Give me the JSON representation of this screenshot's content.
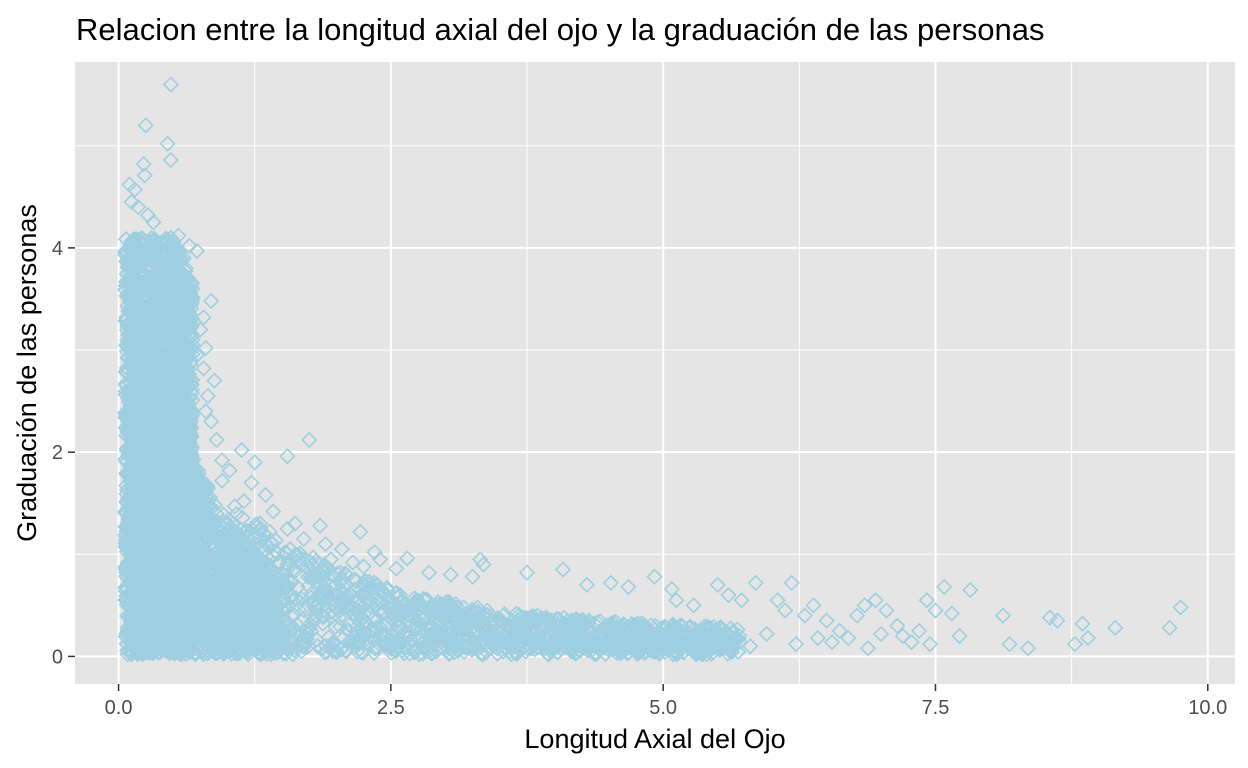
{
  "chart_data": {
    "type": "scatter",
    "title": "Relacion entre la longitud axial del ojo y la graduación de las personas",
    "xlabel": "Longitud Axial del Ojo",
    "ylabel": "Graduación de las personas",
    "xlim": [
      -0.4,
      10.25
    ],
    "ylim": [
      -0.27,
      5.82
    ],
    "x_ticks": [
      0,
      2.5,
      5,
      7.5,
      10
    ],
    "x_tick_labels": [
      "0.0",
      "2.5",
      "5.0",
      "7.5",
      "10.0"
    ],
    "y_ticks": [
      0,
      2,
      4
    ],
    "y_tick_labels": [
      "0",
      "2",
      "4"
    ],
    "grid": true,
    "legend": "none",
    "marker": "open-diamond",
    "colors": {
      "marker": "#9ecfe0",
      "panel": "#e5e5e5",
      "grid": "#ffffff",
      "tick": "#333333"
    },
    "points": [
      [
        0.48,
        5.6
      ],
      [
        0.25,
        5.2
      ],
      [
        0.45,
        5.02
      ],
      [
        0.48,
        4.86
      ],
      [
        0.23,
        4.82
      ],
      [
        0.24,
        4.71
      ],
      [
        0.1,
        4.62
      ],
      [
        0.15,
        4.57
      ],
      [
        0.12,
        4.45
      ],
      [
        0.18,
        4.4
      ],
      [
        0.27,
        4.32
      ],
      [
        0.32,
        4.25
      ],
      [
        0.55,
        4.12
      ],
      [
        0.65,
        4.02
      ],
      [
        0.72,
        3.97
      ],
      [
        0.6,
        3.9
      ],
      [
        0.58,
        3.72
      ],
      [
        0.65,
        3.6
      ],
      [
        0.85,
        3.48
      ],
      [
        0.78,
        3.32
      ],
      [
        0.75,
        3.2
      ],
      [
        0.68,
        3.1
      ],
      [
        0.8,
        3.02
      ],
      [
        0.72,
        2.95
      ],
      [
        0.78,
        2.82
      ],
      [
        0.88,
        2.7
      ],
      [
        0.82,
        2.55
      ],
      [
        0.8,
        2.4
      ],
      [
        0.85,
        2.3
      ],
      [
        0.9,
        2.12
      ],
      [
        1.75,
        2.12
      ],
      [
        1.13,
        2.02
      ],
      [
        1.55,
        1.96
      ],
      [
        0.95,
        1.92
      ],
      [
        1.25,
        1.9
      ],
      [
        1.02,
        1.82
      ],
      [
        0.95,
        1.72
      ],
      [
        1.22,
        1.7
      ],
      [
        1.35,
        1.58
      ],
      [
        1.15,
        1.52
      ],
      [
        1.42,
        1.42
      ],
      [
        1.3,
        1.3
      ],
      [
        1.62,
        1.3
      ],
      [
        1.85,
        1.28
      ],
      [
        1.55,
        1.25
      ],
      [
        2.22,
        1.22
      ],
      [
        1.7,
        1.15
      ],
      [
        1.9,
        1.1
      ],
      [
        2.05,
        1.05
      ],
      [
        2.35,
        1.02
      ],
      [
        1.95,
        0.95
      ],
      [
        2.15,
        0.92
      ],
      [
        2.4,
        0.95
      ],
      [
        2.65,
        0.96
      ],
      [
        2.25,
        0.88
      ],
      [
        2.55,
        0.86
      ],
      [
        2.85,
        0.82
      ],
      [
        3.05,
        0.8
      ],
      [
        3.25,
        0.78
      ],
      [
        3.32,
        0.95
      ],
      [
        3.35,
        0.9
      ],
      [
        3.75,
        0.82
      ],
      [
        4.08,
        0.85
      ],
      [
        4.3,
        0.7
      ],
      [
        4.52,
        0.72
      ],
      [
        4.92,
        0.78
      ],
      [
        4.68,
        0.68
      ],
      [
        5.08,
        0.66
      ],
      [
        5.12,
        0.55
      ],
      [
        5.28,
        0.5
      ],
      [
        5.5,
        0.7
      ],
      [
        5.6,
        0.6
      ],
      [
        5.72,
        0.55
      ],
      [
        5.85,
        0.72
      ],
      [
        6.18,
        0.72
      ],
      [
        6.05,
        0.55
      ],
      [
        6.12,
        0.45
      ],
      [
        6.3,
        0.4
      ],
      [
        6.38,
        0.5
      ],
      [
        6.5,
        0.35
      ],
      [
        6.62,
        0.25
      ],
      [
        6.78,
        0.4
      ],
      [
        6.85,
        0.5
      ],
      [
        6.95,
        0.55
      ],
      [
        7.05,
        0.45
      ],
      [
        7.15,
        0.3
      ],
      [
        7.2,
        0.2
      ],
      [
        7.35,
        0.25
      ],
      [
        7.42,
        0.55
      ],
      [
        7.5,
        0.45
      ],
      [
        7.58,
        0.68
      ],
      [
        7.65,
        0.42
      ],
      [
        7.72,
        0.2
      ],
      [
        7.82,
        0.65
      ],
      [
        8.12,
        0.4
      ],
      [
        8.18,
        0.12
      ],
      [
        8.35,
        0.08
      ],
      [
        8.55,
        0.38
      ],
      [
        8.62,
        0.35
      ],
      [
        8.78,
        0.12
      ],
      [
        8.85,
        0.32
      ],
      [
        8.9,
        0.18
      ],
      [
        9.15,
        0.28
      ],
      [
        9.65,
        0.28
      ],
      [
        9.75,
        0.48
      ],
      [
        6.22,
        0.12
      ],
      [
        6.42,
        0.18
      ],
      [
        6.7,
        0.18
      ],
      [
        6.88,
        0.08
      ],
      [
        7.0,
        0.22
      ],
      [
        7.28,
        0.14
      ],
      [
        7.45,
        0.12
      ],
      [
        6.55,
        0.14
      ],
      [
        5.95,
        0.22
      ],
      [
        5.4,
        0.02
      ],
      [
        4.98,
        0.08
      ],
      [
        4.62,
        0.04
      ],
      [
        4.4,
        0.12
      ],
      [
        3.95,
        0.02
      ],
      [
        3.55,
        0.08
      ],
      [
        2.72,
        0.05
      ],
      [
        2.0,
        0.04
      ],
      [
        1.6,
        0.02
      ],
      [
        5.58,
        0.15
      ],
      [
        5.7,
        0.2
      ],
      [
        5.8,
        0.1
      ]
    ]
  }
}
